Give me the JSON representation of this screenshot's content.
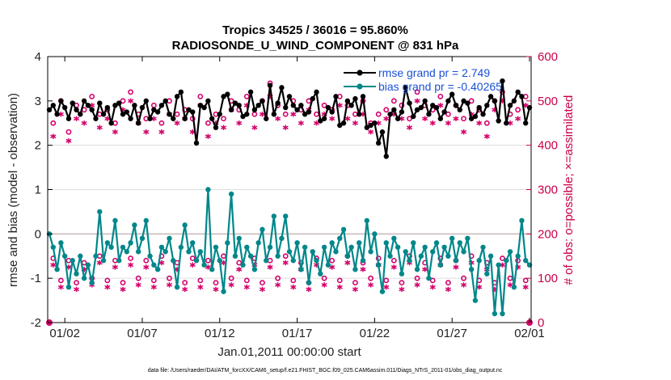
{
  "chart_data": {
    "type": "line",
    "title": "Tropics 34525 / 36016 = 95.860%",
    "subtitle": "RADIOSONDE_U_WIND_COMPONENT @ 831 hPa",
    "xlabel": "Jan.01,2011 00:00:00 start",
    "ylabel": "rmse and bias (model - observation)",
    "ylabel_right": "# of obs: o=possible; ×=assimilated",
    "footer": "data file: /Users/raeder/DAI/ATM_forcXX/CAM6_setup/f.e21.FHIST_BGC.f09_025.CAM6assim.011/Diags_NTrS_2011-01/obs_diag_output.nc",
    "xlim": [
      0,
      31
    ],
    "ylim": [
      -2,
      4
    ],
    "ylim_right": [
      0,
      600
    ],
    "xtick_values": [
      1,
      6,
      11,
      16,
      21,
      26,
      31
    ],
    "xtick_labels": [
      "01/02",
      "01/07",
      "01/12",
      "01/17",
      "01/22",
      "01/27",
      "02/01"
    ],
    "ytick_labels": [
      "-2",
      "-1",
      "0",
      "1",
      "2",
      "3",
      "4"
    ],
    "ytick_labels_right": [
      "0",
      "100",
      "200",
      "300",
      "400",
      "500",
      "600"
    ],
    "grid_right": [
      100,
      300,
      400
    ],
    "zero_line": 0,
    "legend_placement": "top-right",
    "series": [
      {
        "name": "rmse grand pr = 2.749",
        "axis": "left",
        "color": "#000000",
        "marker": "filled-circle",
        "x": [
          0,
          0.25,
          0.5,
          0.75,
          1,
          1.25,
          1.5,
          1.75,
          2,
          2.25,
          2.5,
          2.75,
          3,
          3.25,
          3.5,
          3.75,
          4,
          4.25,
          4.5,
          4.75,
          5,
          5.25,
          5.5,
          5.75,
          6,
          6.25,
          6.5,
          6.75,
          7,
          7.25,
          7.5,
          7.75,
          8,
          8.25,
          8.5,
          8.75,
          9,
          9.25,
          9.5,
          9.75,
          10,
          10.25,
          10.5,
          10.75,
          11,
          11.25,
          11.5,
          11.75,
          12,
          12.25,
          12.5,
          12.75,
          13,
          13.25,
          13.5,
          13.75,
          14,
          14.25,
          14.5,
          14.75,
          15,
          15.25,
          15.5,
          15.75,
          16,
          16.25,
          16.5,
          16.75,
          17,
          17.25,
          17.5,
          17.75,
          18,
          18.25,
          18.5,
          18.75,
          19,
          19.25,
          19.5,
          19.75,
          20,
          20.25,
          20.5,
          20.75,
          21,
          21.25,
          21.5,
          21.75,
          22,
          22.25,
          22.5,
          22.75,
          23,
          23.25,
          23.5,
          23.75,
          24,
          24.25,
          24.5,
          24.75,
          25,
          25.25,
          25.5,
          25.75,
          26,
          26.25,
          26.5,
          26.75,
          27,
          27.25,
          27.5,
          27.75,
          28,
          28.25,
          28.5,
          28.75,
          29,
          29.25,
          29.5,
          29.75,
          30,
          30.25,
          30.5,
          30.75,
          31
        ],
        "values": [
          2.8,
          2.9,
          2.7,
          3.0,
          2.85,
          2.6,
          2.95,
          2.8,
          2.7,
          3.0,
          2.9,
          2.8,
          2.6,
          2.95,
          2.7,
          2.85,
          2.5,
          2.9,
          2.95,
          2.7,
          2.75,
          2.6,
          2.9,
          2.5,
          2.85,
          3.0,
          2.6,
          2.8,
          2.75,
          2.9,
          3.0,
          2.7,
          2.6,
          3.1,
          3.2,
          2.6,
          2.8,
          2.75,
          2.05,
          2.9,
          2.85,
          3.0,
          2.6,
          2.4,
          2.7,
          3.1,
          3.15,
          2.8,
          2.95,
          2.9,
          2.65,
          2.7,
          3.2,
          2.8,
          2.9,
          3.0,
          2.6,
          3.35,
          2.7,
          2.95,
          3.3,
          2.85,
          3.1,
          2.9,
          2.8,
          2.9,
          2.7,
          2.75,
          3.05,
          3.2,
          2.55,
          2.6,
          2.85,
          2.75,
          3.1,
          2.45,
          2.5,
          3.0,
          2.9,
          3.05,
          2.7,
          3.1,
          2.4,
          2.45,
          2.5,
          2.05,
          2.3,
          1.75,
          2.7,
          2.8,
          2.6,
          2.75,
          3.3,
          2.95,
          2.65,
          2.8,
          2.85,
          3.0,
          2.7,
          2.9,
          2.85,
          2.6,
          2.75,
          3.0,
          3.15,
          2.9,
          2.8,
          3.0,
          2.95,
          2.6,
          2.65,
          2.85,
          2.7,
          2.9,
          3.1,
          3.0,
          2.55,
          3.45,
          2.5,
          2.9,
          3.0,
          3.2,
          3.1,
          2.5,
          2.85
        ]
      },
      {
        "name": "bias grand pr = -0.40265",
        "axis": "left",
        "color": "#00878a",
        "marker": "filled-circle",
        "x": [
          0,
          0.25,
          0.5,
          0.75,
          1,
          1.25,
          1.5,
          1.75,
          2,
          2.25,
          2.5,
          2.75,
          3,
          3.25,
          3.5,
          3.75,
          4,
          4.25,
          4.5,
          4.75,
          5,
          5.25,
          5.5,
          5.75,
          6,
          6.25,
          6.5,
          6.75,
          7,
          7.25,
          7.5,
          7.75,
          8,
          8.25,
          8.5,
          8.75,
          9,
          9.25,
          9.5,
          9.75,
          10,
          10.25,
          10.5,
          10.75,
          11,
          11.25,
          11.5,
          11.75,
          12,
          12.25,
          12.5,
          12.75,
          13,
          13.25,
          13.5,
          13.75,
          14,
          14.25,
          14.5,
          14.75,
          15,
          15.25,
          15.5,
          15.75,
          16,
          16.25,
          16.5,
          16.75,
          17,
          17.25,
          17.5,
          17.75,
          18,
          18.25,
          18.5,
          18.75,
          19,
          19.25,
          19.5,
          19.75,
          20,
          20.25,
          20.5,
          20.75,
          21,
          21.25,
          21.5,
          21.75,
          22,
          22.25,
          22.5,
          22.75,
          23,
          23.25,
          23.5,
          23.75,
          24,
          24.25,
          24.5,
          24.75,
          25,
          25.25,
          25.5,
          25.75,
          26,
          26.25,
          26.5,
          26.75,
          27,
          27.25,
          27.5,
          27.75,
          28,
          28.25,
          28.5,
          28.75,
          29,
          29.25,
          29.5,
          29.75,
          30,
          30.25,
          30.5,
          30.75,
          31
        ],
        "values": [
          0.0,
          -0.3,
          -0.8,
          -0.2,
          -0.5,
          -1.2,
          -0.6,
          -0.9,
          -0.5,
          -1.0,
          -0.7,
          -1.1,
          -0.5,
          0.5,
          -0.6,
          -0.2,
          -0.3,
          0.3,
          -0.6,
          -0.3,
          -0.4,
          -0.2,
          0.2,
          -0.4,
          -0.1,
          0.3,
          -0.5,
          -0.7,
          -0.8,
          -0.3,
          -0.4,
          -0.1,
          -0.6,
          -1.2,
          -0.3,
          0.2,
          -0.4,
          -0.2,
          -0.6,
          -0.4,
          -0.7,
          1.0,
          -0.8,
          -0.3,
          -0.6,
          -1.3,
          -0.2,
          0.9,
          -0.5,
          -0.1,
          -0.7,
          -0.3,
          -0.5,
          -0.8,
          -0.2,
          0.1,
          -0.6,
          -0.3,
          0.4,
          -0.5,
          -0.1,
          0.4,
          -0.4,
          -0.6,
          -0.2,
          -0.8,
          -0.3,
          -1.1,
          -0.4,
          -0.6,
          -0.9,
          -0.3,
          -0.7,
          -0.2,
          -0.4,
          -0.1,
          0.1,
          -0.5,
          -0.3,
          -0.8,
          -0.2,
          -0.6,
          0.3,
          -0.4,
          0.0,
          -0.7,
          -1.3,
          -0.2,
          -0.5,
          -0.1,
          -0.3,
          -0.9,
          -0.4,
          -0.6,
          -0.2,
          -0.8,
          -0.5,
          -0.3,
          -1.0,
          -0.4,
          -0.2,
          -0.7,
          -0.3,
          -0.5,
          -0.1,
          -0.6,
          -0.2,
          -0.4,
          -0.1,
          -0.8,
          -1.5,
          -0.6,
          -0.3,
          -0.9,
          -0.5,
          -1.8,
          -0.7,
          -1.8,
          -0.6,
          -0.4,
          -1.2,
          -0.5,
          0.3,
          -0.6,
          -0.7
        ]
      },
      {
        "name": "obs possible (upper)",
        "axis": "right",
        "color": "#d4006b",
        "marker": "open-circle",
        "x": [
          0.25,
          0.75,
          1.25,
          1.75,
          2.25,
          2.75,
          3.25,
          3.75,
          4.25,
          4.75,
          5.25,
          5.75,
          6.25,
          6.75,
          7.25,
          7.75,
          8.25,
          8.75,
          9.25,
          9.75,
          10.25,
          10.75,
          11.25,
          11.75,
          12.25,
          12.75,
          13.25,
          13.75,
          14.25,
          14.75,
          15.25,
          15.75,
          16.25,
          16.75,
          17.25,
          17.75,
          18.25,
          18.75,
          19.25,
          19.75,
          20.25,
          20.75,
          21.25,
          21.75,
          22.25,
          22.75,
          23.25,
          23.75,
          24.25,
          24.75,
          25.25,
          25.75,
          26.25,
          26.75,
          27.25,
          27.75,
          28.25,
          28.75,
          29.25,
          29.75,
          30.25,
          30.75
        ],
        "values": [
          450,
          500,
          430,
          490,
          480,
          510,
          470,
          480,
          450,
          500,
          520,
          470,
          460,
          490,
          450,
          500,
          470,
          480,
          460,
          510,
          450,
          470,
          460,
          500,
          480,
          510,
          470,
          500,
          540,
          490,
          470,
          500,
          480,
          500,
          470,
          490,
          480,
          510,
          490,
          470,
          500,
          450,
          470,
          480,
          500,
          490,
          460,
          520,
          490,
          480,
          510,
          470,
          490,
          460,
          500,
          480,
          450,
          500,
          520,
          470,
          480,
          510
        ]
      },
      {
        "name": "obs assimilated (upper)",
        "axis": "right",
        "color": "#d4006b",
        "marker": "asterisk",
        "x": [
          0.25,
          0.75,
          1.25,
          1.75,
          2.25,
          2.75,
          3.25,
          3.75,
          4.25,
          4.75,
          5.25,
          5.75,
          6.25,
          6.75,
          7.25,
          7.75,
          8.25,
          8.75,
          9.25,
          9.75,
          10.25,
          10.75,
          11.25,
          11.75,
          12.25,
          12.75,
          13.25,
          13.75,
          14.25,
          14.75,
          15.25,
          15.75,
          16.25,
          16.75,
          17.25,
          17.75,
          18.25,
          18.75,
          19.25,
          19.75,
          20.25,
          20.75,
          21.25,
          21.75,
          22.25,
          22.75,
          23.25,
          23.75,
          24.25,
          24.75,
          25.25,
          25.75,
          26.25,
          26.75,
          27.25,
          27.75,
          28.25,
          28.75,
          29.25,
          29.75,
          30.25,
          30.75
        ],
        "values": [
          420,
          470,
          410,
          460,
          450,
          490,
          440,
          460,
          430,
          480,
          500,
          450,
          430,
          460,
          430,
          470,
          450,
          460,
          430,
          490,
          420,
          450,
          440,
          480,
          450,
          490,
          440,
          470,
          510,
          460,
          440,
          470,
          450,
          480,
          450,
          470,
          460,
          490,
          460,
          450,
          470,
          430,
          450,
          460,
          470,
          460,
          440,
          500,
          460,
          450,
          490,
          450,
          460,
          430,
          470,
          450,
          420,
          480,
          500,
          450,
          460,
          490
        ]
      },
      {
        "name": "obs possible (lower)",
        "axis": "right",
        "color": "#d4006b",
        "marker": "open-circle",
        "x": [
          0.25,
          0.75,
          1.25,
          1.75,
          2.25,
          2.75,
          3.25,
          3.75,
          4.25,
          4.75,
          5.25,
          5.75,
          6.25,
          6.75,
          7.25,
          7.75,
          8.25,
          8.75,
          9.25,
          9.75,
          10.25,
          10.75,
          11.25,
          11.75,
          12.25,
          12.75,
          13.25,
          13.75,
          14.25,
          14.75,
          15.25,
          15.75,
          16.25,
          16.75,
          17.25,
          17.75,
          18.25,
          18.75,
          19.25,
          19.75,
          20.25,
          20.75,
          21.25,
          21.75,
          22.25,
          22.75,
          23.25,
          23.75,
          24.25,
          24.75,
          25.25,
          25.75,
          26.25,
          26.75,
          27.25,
          27.75,
          28.25,
          28.75,
          29.25,
          29.75,
          30.25,
          30.75
        ],
        "values": [
          145,
          95,
          140,
          90,
          135,
          100,
          150,
          95,
          140,
          90,
          145,
          100,
          140,
          95,
          150,
          100,
          135,
          90,
          145,
          95,
          140,
          90,
          150,
          100,
          135,
          95,
          145,
          90,
          140,
          100,
          150,
          95,
          135,
          90,
          145,
          100,
          140,
          95,
          150,
          90,
          135,
          100,
          145,
          95,
          140,
          90,
          150,
          100,
          135,
          95,
          145,
          90,
          140,
          100,
          150,
          95,
          135,
          90,
          145,
          100,
          140,
          95
        ]
      },
      {
        "name": "obs assimilated (lower)",
        "axis": "right",
        "color": "#d4006b",
        "marker": "asterisk",
        "x": [
          0.25,
          0.75,
          1.25,
          1.75,
          2.25,
          2.75,
          3.25,
          3.75,
          4.25,
          4.75,
          5.25,
          5.75,
          6.25,
          6.75,
          7.25,
          7.75,
          8.25,
          8.75,
          9.25,
          9.75,
          10.25,
          10.75,
          11.25,
          11.75,
          12.25,
          12.75,
          13.25,
          13.75,
          14.25,
          14.75,
          15.25,
          15.75,
          16.25,
          16.75,
          17.25,
          17.75,
          18.25,
          18.75,
          19.25,
          19.75,
          20.25,
          20.75,
          21.25,
          21.75,
          22.25,
          22.75,
          23.25,
          23.75,
          24.25,
          24.75,
          25.25,
          25.75,
          26.25,
          26.75,
          27.25,
          27.75,
          28.25,
          28.75,
          29.25,
          29.75,
          30.25,
          30.75
        ],
        "values": [
          130,
          80,
          125,
          75,
          120,
          85,
          135,
          80,
          125,
          75,
          130,
          85,
          125,
          80,
          135,
          85,
          120,
          75,
          130,
          80,
          125,
          75,
          135,
          85,
          120,
          80,
          130,
          75,
          125,
          85,
          135,
          80,
          120,
          75,
          130,
          85,
          125,
          80,
          135,
          75,
          120,
          85,
          130,
          80,
          125,
          75,
          135,
          85,
          120,
          80,
          130,
          75,
          125,
          85,
          135,
          80,
          120,
          75,
          130,
          85,
          125,
          80
        ]
      }
    ],
    "endpoint_markers": [
      {
        "x": 0,
        "y_right": 0
      },
      {
        "x": 31,
        "y_right": 0
      }
    ]
  }
}
